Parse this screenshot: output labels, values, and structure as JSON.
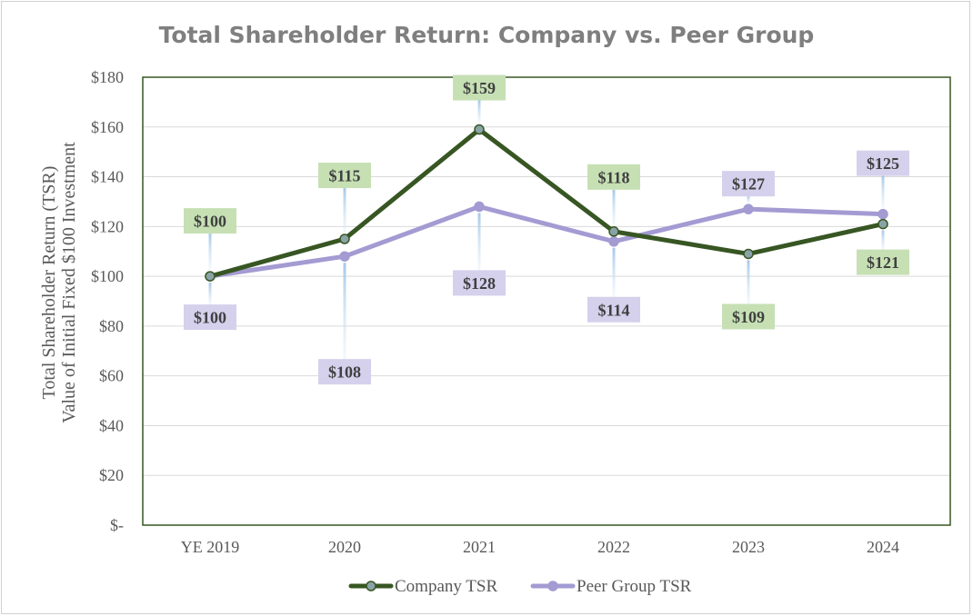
{
  "chart_data": {
    "type": "line",
    "title": "Total Shareholder Return: Company vs. Peer Group",
    "ylabel_lines": [
      "Total Shareholder Return (TSR)",
      "Value of Initial Fixed $100 Investment"
    ],
    "xlabel": "",
    "categories": [
      "YE 2019",
      "2020",
      "2021",
      "2022",
      "2023",
      "2024"
    ],
    "ylim": [
      0,
      180
    ],
    "yticks": [
      0,
      20,
      40,
      60,
      80,
      100,
      120,
      140,
      160,
      180
    ],
    "ytick_labels": [
      "$-",
      "$20",
      "$40",
      "$60",
      "$80",
      "$100",
      "$120",
      "$140",
      "$160",
      "$180"
    ],
    "grid": true,
    "legend_position": "bottom",
    "series": [
      {
        "name": "Company TSR",
        "values": [
          100,
          115,
          159,
          118,
          109,
          121
        ],
        "labels": [
          "$100",
          "$115",
          "$159",
          "$118",
          "$109",
          "$121"
        ],
        "label_side": [
          "above",
          "above",
          "above",
          "above",
          "below",
          "below"
        ],
        "color": "#375623",
        "marker_fill": "#8aa3a6",
        "label_bg": "#c6e0b4"
      },
      {
        "name": "Peer Group TSR",
        "values": [
          100,
          108,
          128,
          114,
          127,
          125
        ],
        "labels": [
          "$100",
          "$108",
          "$128",
          "$114",
          "$127",
          "$125"
        ],
        "label_side": [
          "below",
          "below",
          "below",
          "below",
          "above",
          "above"
        ],
        "color": "#a39bd2",
        "marker_fill": "#a39bd2",
        "label_bg": "#d5d0ec"
      }
    ]
  }
}
